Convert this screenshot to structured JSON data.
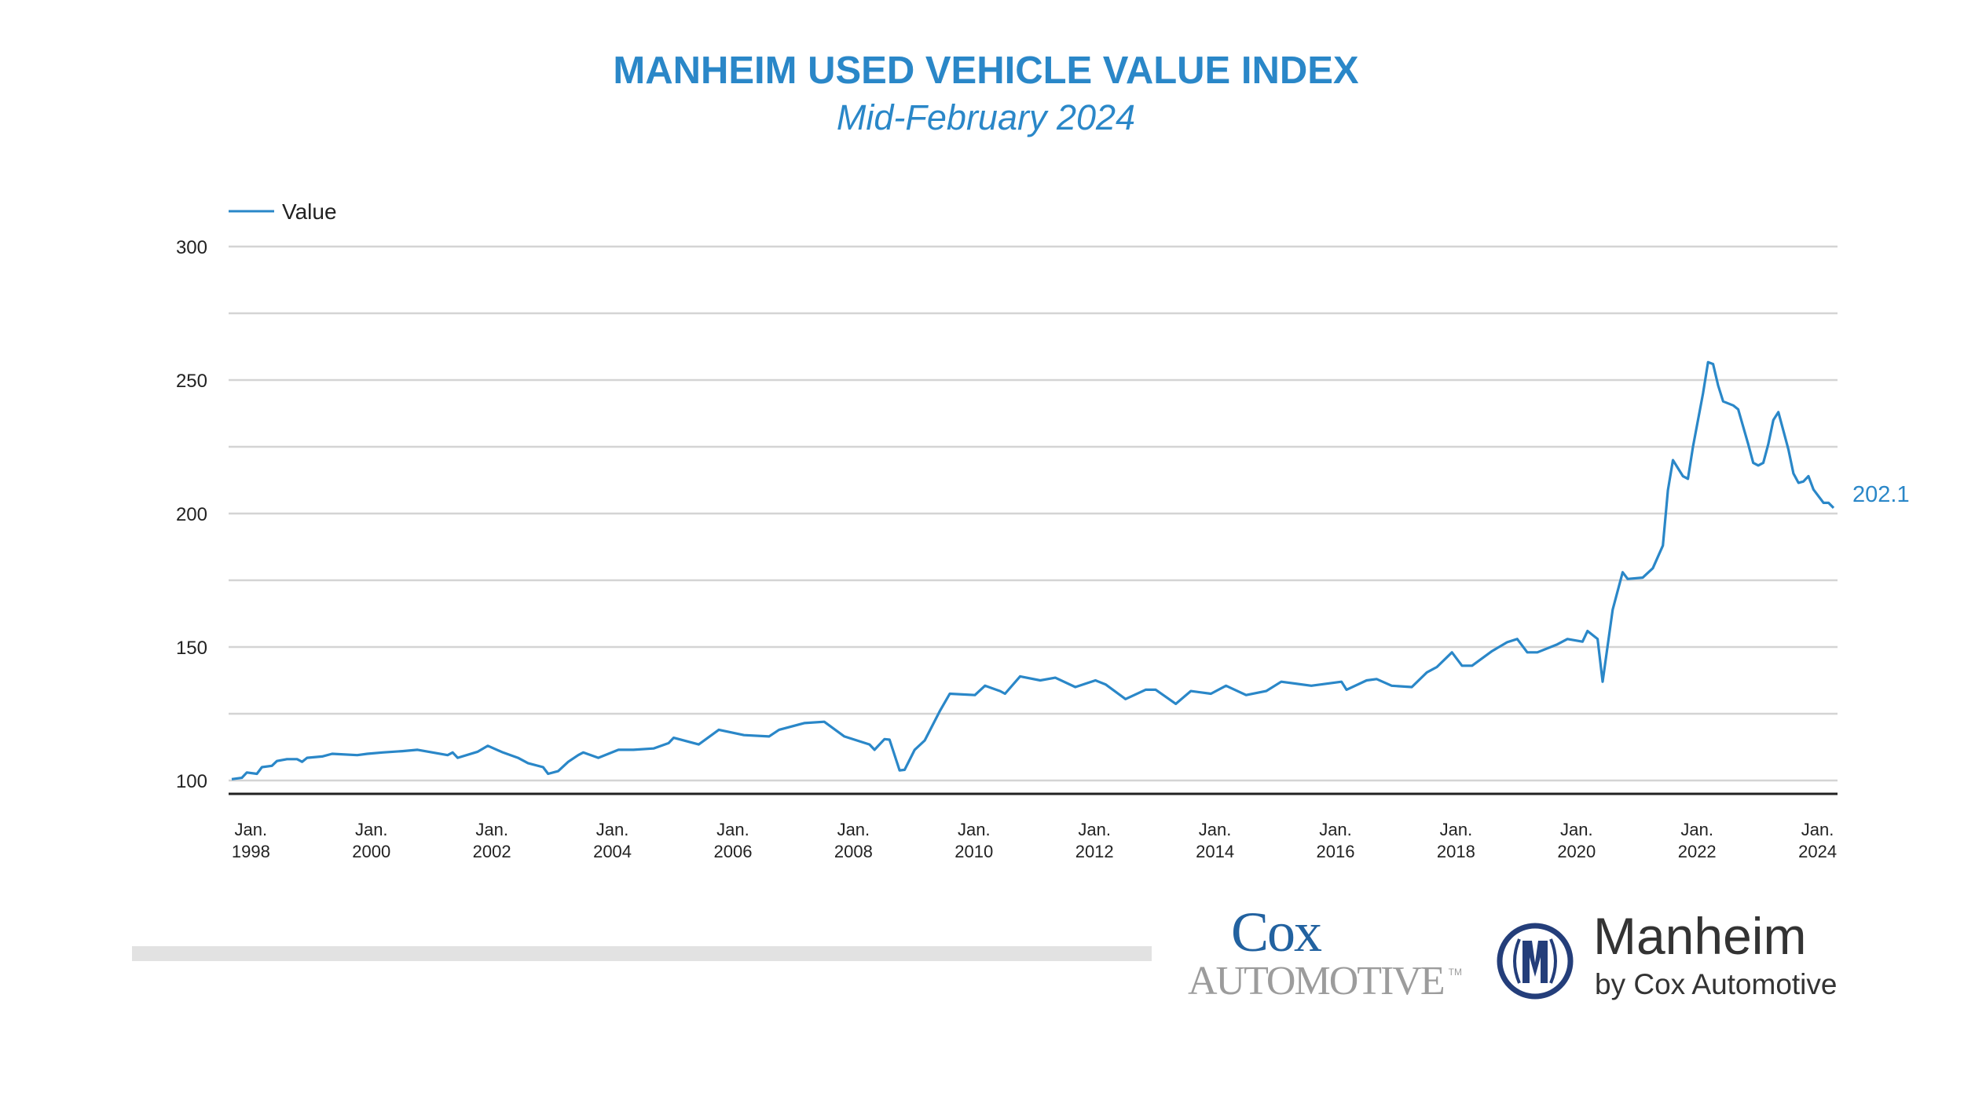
{
  "title": "MANHEIM USED VEHICLE VALUE INDEX",
  "subtitle": "Mid-February 2024",
  "logos": {
    "cox_line1": "Cox",
    "cox_line2": "AUTOMOTIVE",
    "cox_tm": "TM",
    "manheim": "Manheim",
    "manheim_sub": "by Cox Automotive"
  },
  "colors": {
    "series": "#2a87c8",
    "grid": "#d4d4d4",
    "axis": "#222222",
    "manheim_navy": "#243e7a"
  },
  "chart_data": {
    "type": "line",
    "title": "MANHEIM USED VEHICLE VALUE INDEX",
    "subtitle": "Mid-February 2024",
    "legend": {
      "position": "top-left",
      "entries": [
        "Value"
      ]
    },
    "ylim": [
      95,
      300
    ],
    "yticks": [
      100,
      150,
      200,
      250,
      300
    ],
    "grid_step": 25,
    "grid": true,
    "xlim": [
      "1997-07",
      "2024-02"
    ],
    "xticks": [
      {
        "date": "1998-01",
        "line1": "Jan.",
        "line2": "1998"
      },
      {
        "date": "2000-01",
        "line1": "Jan.",
        "line2": "2000"
      },
      {
        "date": "2002-01",
        "line1": "Jan.",
        "line2": "2002"
      },
      {
        "date": "2004-01",
        "line1": "Jan.",
        "line2": "2004"
      },
      {
        "date": "2006-01",
        "line1": "Jan.",
        "line2": "2006"
      },
      {
        "date": "2008-01",
        "line1": "Jan.",
        "line2": "2008"
      },
      {
        "date": "2010-01",
        "line1": "Jan.",
        "line2": "2010"
      },
      {
        "date": "2012-01",
        "line1": "Jan.",
        "line2": "2012"
      },
      {
        "date": "2014-01",
        "line1": "Jan.",
        "line2": "2014"
      },
      {
        "date": "2016-01",
        "line1": "Jan.",
        "line2": "2016"
      },
      {
        "date": "2018-01",
        "line1": "Jan.",
        "line2": "2018"
      },
      {
        "date": "2020-01",
        "line1": "Jan.",
        "line2": "2020"
      },
      {
        "date": "2022-01",
        "line1": "Jan.",
        "line2": "2022"
      },
      {
        "date": "2024-01",
        "line1": "Jan.",
        "line2": "2024"
      }
    ],
    "end_label": "202.1",
    "series": [
      {
        "name": "Value",
        "points": [
          [
            "1997-07",
            100.5
          ],
          [
            "1997-09",
            101
          ],
          [
            "1997-10",
            103
          ],
          [
            "1997-12",
            102.5
          ],
          [
            "1998-01",
            105
          ],
          [
            "1998-03",
            105.5
          ],
          [
            "1998-04",
            107.3
          ],
          [
            "1998-06",
            108
          ],
          [
            "1998-08",
            108
          ],
          [
            "1998-09",
            107
          ],
          [
            "1998-10",
            108.5
          ],
          [
            "1999-01",
            109
          ],
          [
            "1999-03",
            110
          ],
          [
            "1999-08",
            109.5
          ],
          [
            "1999-10",
            110
          ],
          [
            "2000-01",
            110.5
          ],
          [
            "2000-05",
            111
          ],
          [
            "2000-08",
            111.5
          ],
          [
            "2000-11",
            110.5
          ],
          [
            "2001-02",
            109.5
          ],
          [
            "2001-03",
            110.5
          ],
          [
            "2001-04",
            108.5
          ],
          [
            "2001-08",
            110.8
          ],
          [
            "2001-10",
            113
          ],
          [
            "2002-01",
            110.5
          ],
          [
            "2002-04",
            108.5
          ],
          [
            "2002-06",
            106.5
          ],
          [
            "2002-09",
            105
          ],
          [
            "2002-10",
            102.5
          ],
          [
            "2002-12",
            103.5
          ],
          [
            "2003-02",
            107
          ],
          [
            "2003-04",
            109.5
          ],
          [
            "2003-05",
            110.5
          ],
          [
            "2003-08",
            108.5
          ],
          [
            "2003-12",
            111.5
          ],
          [
            "2004-03",
            111.5
          ],
          [
            "2004-07",
            112
          ],
          [
            "2004-10",
            114
          ],
          [
            "2004-11",
            116
          ],
          [
            "2005-04",
            113.5
          ],
          [
            "2005-08",
            119
          ],
          [
            "2006-01",
            117
          ],
          [
            "2006-06",
            116.5
          ],
          [
            "2006-08",
            119
          ],
          [
            "2007-01",
            121.5
          ],
          [
            "2007-05",
            122
          ],
          [
            "2007-09",
            116.5
          ],
          [
            "2008-02",
            113.5
          ],
          [
            "2008-03",
            111.5
          ],
          [
            "2008-05",
            115.5
          ],
          [
            "2008-06",
            115.3
          ],
          [
            "2008-08",
            103.8
          ],
          [
            "2008-09",
            104
          ],
          [
            "2008-11",
            111.5
          ],
          [
            "2009-01",
            115
          ],
          [
            "2009-04",
            126
          ],
          [
            "2009-06",
            132.5
          ],
          [
            "2009-11",
            132
          ],
          [
            "2010-01",
            135.5
          ],
          [
            "2010-04",
            133.5
          ],
          [
            "2010-05",
            132.5
          ],
          [
            "2010-08",
            139
          ],
          [
            "2010-12",
            137.5
          ],
          [
            "2011-03",
            138.5
          ],
          [
            "2011-07",
            135
          ],
          [
            "2011-11",
            137.5
          ],
          [
            "2012-01",
            136
          ],
          [
            "2012-05",
            130.5
          ],
          [
            "2012-09",
            134
          ],
          [
            "2012-11",
            134
          ],
          [
            "2013-03",
            128.7
          ],
          [
            "2013-06",
            133.5
          ],
          [
            "2013-10",
            132.5
          ],
          [
            "2014-01",
            135.5
          ],
          [
            "2014-05",
            132
          ],
          [
            "2014-09",
            133.5
          ],
          [
            "2014-12",
            137
          ],
          [
            "2015-06",
            135.5
          ],
          [
            "2015-12",
            137
          ],
          [
            "2016-01",
            134
          ],
          [
            "2016-05",
            137.5
          ],
          [
            "2016-07",
            138
          ],
          [
            "2016-10",
            135.5
          ],
          [
            "2017-02",
            135
          ],
          [
            "2017-05",
            140.5
          ],
          [
            "2017-07",
            142.5
          ],
          [
            "2017-10",
            148
          ],
          [
            "2017-12",
            143
          ],
          [
            "2018-02",
            143
          ],
          [
            "2018-06",
            148.5
          ],
          [
            "2018-09",
            151.8
          ],
          [
            "2018-11",
            153
          ],
          [
            "2019-01",
            148
          ],
          [
            "2019-03",
            148
          ],
          [
            "2019-07",
            151
          ],
          [
            "2019-09",
            153
          ],
          [
            "2019-12",
            152
          ],
          [
            "2020-01",
            156
          ],
          [
            "2020-03",
            153
          ],
          [
            "2020-04",
            137
          ],
          [
            "2020-06",
            164
          ],
          [
            "2020-08",
            178
          ],
          [
            "2020-09",
            175.5
          ],
          [
            "2020-12",
            176
          ],
          [
            "2021-02",
            179.5
          ],
          [
            "2021-04",
            188
          ],
          [
            "2021-05",
            208.7
          ],
          [
            "2021-06",
            220
          ],
          [
            "2021-08",
            214
          ],
          [
            "2021-09",
            213
          ],
          [
            "2021-10",
            225
          ],
          [
            "2021-12",
            245
          ],
          [
            "2022-01",
            256.7
          ],
          [
            "2022-02",
            256
          ],
          [
            "2022-03",
            248
          ],
          [
            "2022-04",
            242
          ],
          [
            "2022-06",
            240.5
          ],
          [
            "2022-07",
            239
          ],
          [
            "2022-09",
            226
          ],
          [
            "2022-10",
            219
          ],
          [
            "2022-11",
            218
          ],
          [
            "2022-12",
            219
          ],
          [
            "2023-01",
            226
          ],
          [
            "2023-02",
            235
          ],
          [
            "2023-03",
            238
          ],
          [
            "2023-04",
            231
          ],
          [
            "2023-05",
            224
          ],
          [
            "2023-06",
            215
          ],
          [
            "2023-07",
            211.5
          ],
          [
            "2023-08",
            212
          ],
          [
            "2023-09",
            214
          ],
          [
            "2023-10",
            209
          ],
          [
            "2023-12",
            204
          ],
          [
            "2024-01",
            204
          ],
          [
            "2024-02",
            202.1
          ]
        ]
      }
    ]
  }
}
